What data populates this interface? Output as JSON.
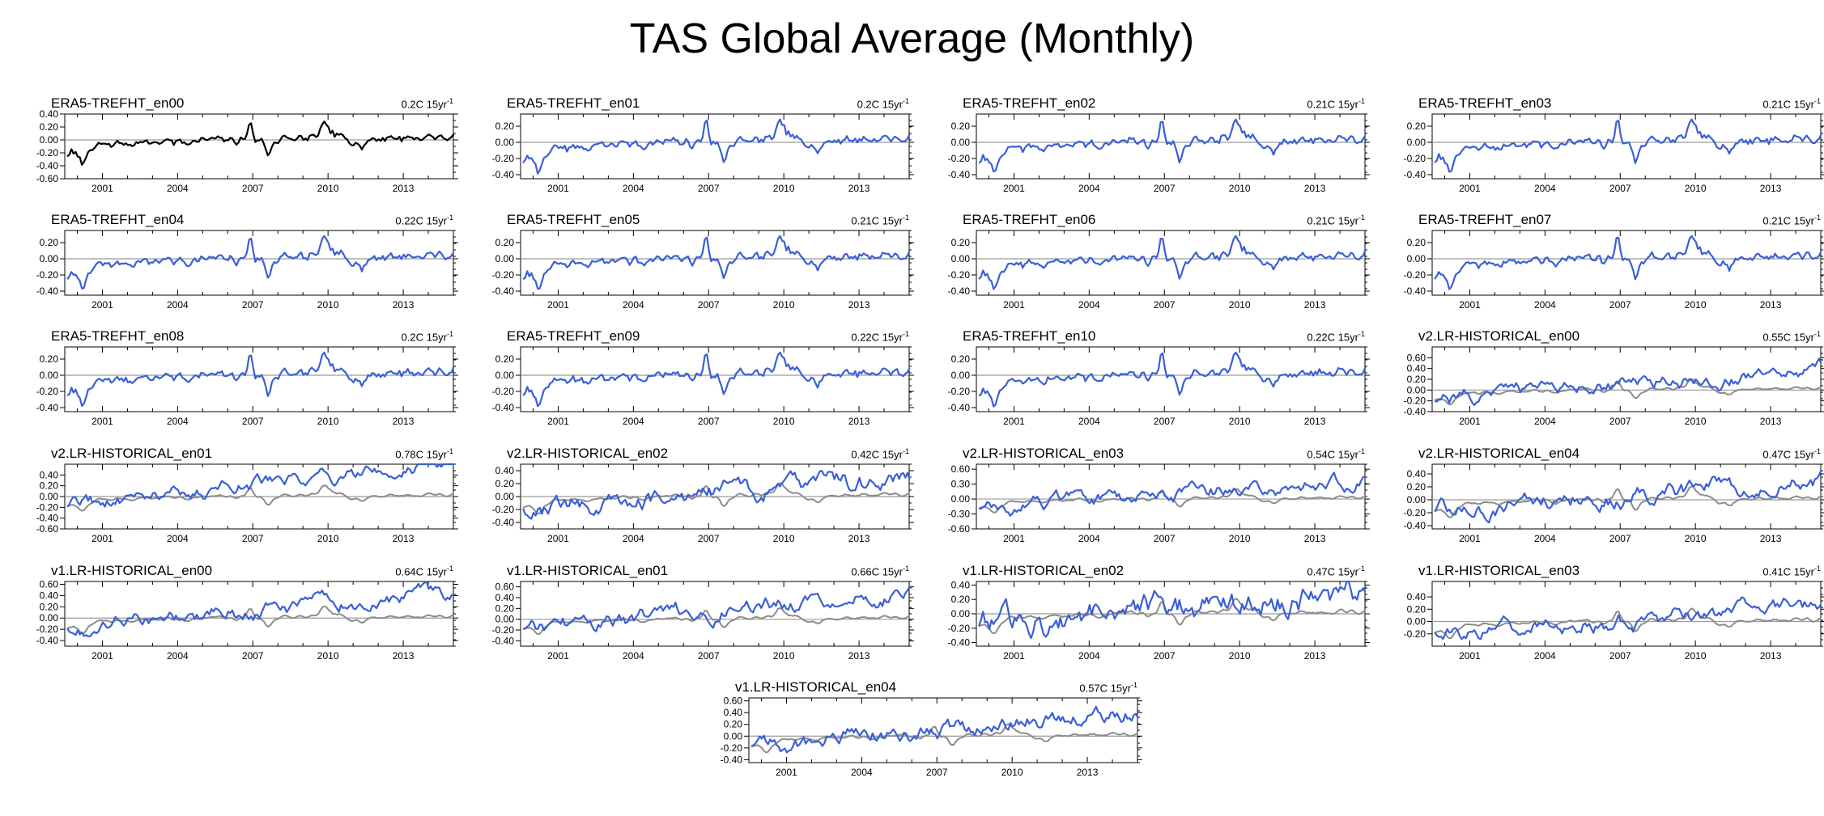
{
  "title": "TAS Global Average (Monthly)",
  "colors": {
    "ensemble": "#3a5fd6",
    "era5": "#000000",
    "reference": "#8c8c8c",
    "zero": "#9a9a9a"
  },
  "x_tick_labels": [
    "2001",
    "2004",
    "2007",
    "2010",
    "2013"
  ],
  "trend_unit": "15yr",
  "trend_exp": "-1",
  "chart_data": [
    {
      "type": "line",
      "title": "ERA5-TREFHT_en00",
      "trend": "0.2C",
      "xlim": [
        1999.5,
        2015.0
      ],
      "ylim": [
        -0.6,
        0.4
      ],
      "yticks": [
        "0.40",
        "0.20",
        "0.00",
        "-0.20",
        "-0.40",
        "-0.60"
      ],
      "style": "era5",
      "drift": 0.2,
      "noise": 1.0,
      "ref": false
    },
    {
      "type": "line",
      "title": "ERA5-TREFHT_en01",
      "trend": "0.2C",
      "xlim": [
        1999.5,
        2015.0
      ],
      "ylim": [
        -0.45,
        0.35
      ],
      "yticks": [
        "0.20",
        "0.00",
        "-0.20",
        "-0.40"
      ],
      "style": "ens",
      "drift": 0.2,
      "noise": 1.0,
      "ref": false
    },
    {
      "type": "line",
      "title": "ERA5-TREFHT_en02",
      "trend": "0.21C",
      "xlim": [
        1999.5,
        2015.0
      ],
      "ylim": [
        -0.45,
        0.35
      ],
      "yticks": [
        "0.20",
        "0.00",
        "-0.20",
        "-0.40"
      ],
      "style": "ens",
      "drift": 0.21,
      "noise": 1.0,
      "ref": false
    },
    {
      "type": "line",
      "title": "ERA5-TREFHT_en03",
      "trend": "0.21C",
      "xlim": [
        1999.5,
        2015.0
      ],
      "ylim": [
        -0.45,
        0.35
      ],
      "yticks": [
        "0.20",
        "0.00",
        "-0.20",
        "-0.40"
      ],
      "style": "ens",
      "drift": 0.21,
      "noise": 1.0,
      "ref": false
    },
    {
      "type": "line",
      "title": "ERA5-TREFHT_en04",
      "trend": "0.22C",
      "xlim": [
        1999.5,
        2015.0
      ],
      "ylim": [
        -0.45,
        0.35
      ],
      "yticks": [
        "0.20",
        "0.00",
        "-0.20",
        "-0.40"
      ],
      "style": "ens",
      "drift": 0.22,
      "noise": 1.0,
      "ref": false
    },
    {
      "type": "line",
      "title": "ERA5-TREFHT_en05",
      "trend": "0.21C",
      "xlim": [
        1999.5,
        2015.0
      ],
      "ylim": [
        -0.45,
        0.35
      ],
      "yticks": [
        "0.20",
        "0.00",
        "-0.20",
        "-0.40"
      ],
      "style": "ens",
      "drift": 0.21,
      "noise": 1.0,
      "ref": false
    },
    {
      "type": "line",
      "title": "ERA5-TREFHT_en06",
      "trend": "0.21C",
      "xlim": [
        1999.5,
        2015.0
      ],
      "ylim": [
        -0.45,
        0.35
      ],
      "yticks": [
        "0.20",
        "0.00",
        "-0.20",
        "-0.40"
      ],
      "style": "ens",
      "drift": 0.21,
      "noise": 1.0,
      "ref": false
    },
    {
      "type": "line",
      "title": "ERA5-TREFHT_en07",
      "trend": "0.21C",
      "xlim": [
        1999.5,
        2015.0
      ],
      "ylim": [
        -0.45,
        0.35
      ],
      "yticks": [
        "0.20",
        "0.00",
        "-0.20",
        "-0.40"
      ],
      "style": "ens",
      "drift": 0.21,
      "noise": 1.0,
      "ref": false
    },
    {
      "type": "line",
      "title": "ERA5-TREFHT_en08",
      "trend": "0.2C",
      "xlim": [
        1999.5,
        2015.0
      ],
      "ylim": [
        -0.45,
        0.35
      ],
      "yticks": [
        "0.20",
        "0.00",
        "-0.20",
        "-0.40"
      ],
      "style": "ens",
      "drift": 0.2,
      "noise": 1.0,
      "ref": false
    },
    {
      "type": "line",
      "title": "ERA5-TREFHT_en09",
      "trend": "0.22C",
      "xlim": [
        1999.5,
        2015.0
      ],
      "ylim": [
        -0.45,
        0.35
      ],
      "yticks": [
        "0.20",
        "0.00",
        "-0.20",
        "-0.40"
      ],
      "style": "ens",
      "drift": 0.22,
      "noise": 1.0,
      "ref": false
    },
    {
      "type": "line",
      "title": "ERA5-TREFHT_en10",
      "trend": "0.22C",
      "xlim": [
        1999.5,
        2015.0
      ],
      "ylim": [
        -0.45,
        0.35
      ],
      "yticks": [
        "0.20",
        "0.00",
        "-0.20",
        "-0.40"
      ],
      "style": "ens",
      "drift": 0.22,
      "noise": 1.0,
      "ref": false
    },
    {
      "type": "line",
      "title": "v2.LR-HISTORICAL_en00",
      "trend": "0.55C",
      "xlim": [
        1999.5,
        2015.0
      ],
      "ylim": [
        -0.4,
        0.8
      ],
      "yticks": [
        "0.60",
        "0.40",
        "0.20",
        "0.00",
        "-0.20",
        "-0.40"
      ],
      "style": "model",
      "drift": 0.55,
      "noise": 1.1,
      "ref": true
    },
    {
      "type": "line",
      "title": "v2.LR-HISTORICAL_en01",
      "trend": "0.78C",
      "xlim": [
        1999.5,
        2015.0
      ],
      "ylim": [
        -0.6,
        0.6
      ],
      "yticks": [
        "0.40",
        "0.20",
        "0.00",
        "-0.20",
        "-0.40",
        "-0.60"
      ],
      "style": "model",
      "drift": 0.78,
      "noise": 1.1,
      "ref": true
    },
    {
      "type": "line",
      "title": "v2.LR-HISTORICAL_en02",
      "trend": "0.42C",
      "xlim": [
        1999.5,
        2015.0
      ],
      "ylim": [
        -0.5,
        0.5
      ],
      "yticks": [
        "0.40",
        "0.20",
        "0.00",
        "-0.20",
        "-0.40"
      ],
      "style": "model",
      "drift": 0.42,
      "noise": 1.2,
      "ref": true
    },
    {
      "type": "line",
      "title": "v2.LR-HISTORICAL_en03",
      "trend": "0.54C",
      "xlim": [
        1999.5,
        2015.0
      ],
      "ylim": [
        -0.6,
        0.7
      ],
      "yticks": [
        "0.60",
        "0.30",
        "0.00",
        "-0.30",
        "-0.60"
      ],
      "style": "model",
      "drift": 0.54,
      "noise": 1.2,
      "ref": true
    },
    {
      "type": "line",
      "title": "v2.LR-HISTORICAL_en04",
      "trend": "0.47C",
      "xlim": [
        1999.5,
        2015.0
      ],
      "ylim": [
        -0.45,
        0.55
      ],
      "yticks": [
        "0.40",
        "0.20",
        "0.00",
        "-0.20",
        "-0.40"
      ],
      "style": "model",
      "drift": 0.47,
      "noise": 1.1,
      "ref": true
    },
    {
      "type": "line",
      "title": "v1.LR-HISTORICAL_en00",
      "trend": "0.64C",
      "xlim": [
        1999.5,
        2015.0
      ],
      "ylim": [
        -0.5,
        0.65
      ],
      "yticks": [
        "0.60",
        "0.40",
        "0.20",
        "0.00",
        "-0.20",
        "-0.40"
      ],
      "style": "model",
      "drift": 0.64,
      "noise": 1.1,
      "ref": true
    },
    {
      "type": "line",
      "title": "v1.LR-HISTORICAL_en01",
      "trend": "0.66C",
      "xlim": [
        1999.5,
        2015.0
      ],
      "ylim": [
        -0.5,
        0.7
      ],
      "yticks": [
        "0.60",
        "0.40",
        "0.20",
        "0.00",
        "-0.20",
        "-0.40"
      ],
      "style": "model",
      "drift": 0.66,
      "noise": 1.2,
      "ref": true
    },
    {
      "type": "line",
      "title": "v1.LR-HISTORICAL_en02",
      "trend": "0.47C",
      "xlim": [
        1999.5,
        2015.0
      ],
      "ylim": [
        -0.45,
        0.45
      ],
      "yticks": [
        "0.40",
        "0.20",
        "0.00",
        "-0.20",
        "-0.40"
      ],
      "style": "model",
      "drift": 0.47,
      "noise": 1.5,
      "ref": true
    },
    {
      "type": "line",
      "title": "v1.LR-HISTORICAL_en03",
      "trend": "0.41C",
      "xlim": [
        1999.5,
        2015.0
      ],
      "ylim": [
        -0.4,
        0.65
      ],
      "yticks": [
        "0.40",
        "0.20",
        "0.00",
        "-0.20"
      ],
      "style": "model",
      "drift": 0.41,
      "noise": 1.1,
      "ref": true
    },
    {
      "type": "line",
      "title": "v1.LR-HISTORICAL_en04",
      "trend": "0.57C",
      "xlim": [
        1999.5,
        2015.0
      ],
      "ylim": [
        -0.45,
        0.65
      ],
      "yticks": [
        "0.60",
        "0.40",
        "0.20",
        "0.00",
        "-0.20",
        "-0.40"
      ],
      "style": "model",
      "drift": 0.57,
      "noise": 1.2,
      "ref": true
    }
  ]
}
